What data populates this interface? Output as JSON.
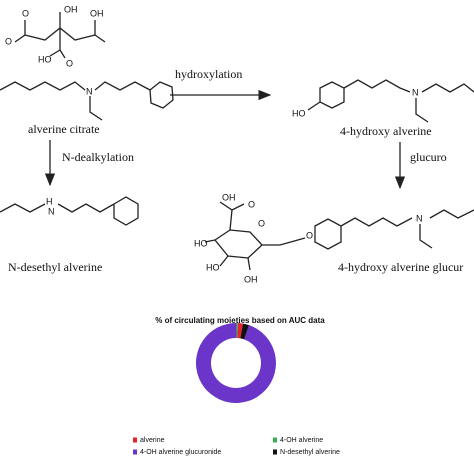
{
  "diagram": {
    "reactions": [
      "hydroxylation",
      "N-dealkylation",
      "glucuro"
    ],
    "compounds": [
      "alverine citrate",
      "4-hydroxy alverine",
      "N-desethyl alverine",
      "4-hydroxy alverine glucur"
    ],
    "atoms": [
      "OH",
      "O",
      "O",
      "OH",
      "HO",
      "O",
      "N",
      "HO",
      "N",
      "H",
      "N",
      "O",
      "HO",
      "HO",
      "OH",
      "OH",
      "O",
      "O",
      "N"
    ]
  },
  "chart_data": {
    "type": "pie",
    "title": "% of circulating moieties based on AUC data",
    "donut": true,
    "categories": [
      "alverine",
      "4-OH alverine",
      "4-OH alverine glucuronide",
      "N-desethyl alverine"
    ],
    "values": [
      2,
      0.5,
      95,
      2.5
    ],
    "colors": [
      "#e3262b",
      "#33b34a",
      "#6a35c8",
      "#111111"
    ]
  }
}
